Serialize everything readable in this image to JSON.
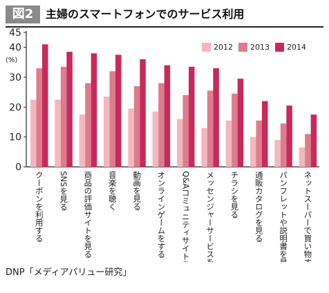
{
  "figure": {
    "badge": "図2",
    "title": "主婦のスマートフォンでのサービス利用",
    "source": "DNP「メディアパリュー研究」"
  },
  "chart_data": {
    "type": "bar",
    "ylabel": "(%)",
    "ylim": [
      0,
      45
    ],
    "yticks": [
      0,
      10,
      20,
      30,
      40,
      45
    ],
    "grid": false,
    "legend_position": "top-right",
    "categories": [
      "クーポンを利用する",
      "SNSを見る",
      "商品の評価サイトを見る",
      "音楽を聴く",
      "動画を見る",
      "オンラインゲームをする",
      "Q&Aコミュニティサイトを見る",
      "メッセンジャーサービスを見る",
      "チラシを見る",
      "通販カタログを見る",
      "パンフレットや説明書を見る",
      "ネットスーパーで買い物する"
    ],
    "series": [
      {
        "name": "2012",
        "color": "#f2b8bd",
        "values": [
          22.5,
          22.5,
          17.5,
          23.5,
          19.5,
          18.5,
          16,
          13,
          15.5,
          10,
          9,
          6.5
        ]
      },
      {
        "name": "2013",
        "color": "#dc7d8d",
        "values": [
          33,
          33.5,
          28,
          32,
          27,
          28,
          24,
          25.5,
          24.5,
          15.5,
          14.5,
          11
        ]
      },
      {
        "name": "2014",
        "color": "#c9295a",
        "values": [
          41,
          38.5,
          38,
          37.5,
          36,
          34,
          33.5,
          33,
          29.5,
          22,
          20.5,
          17.5
        ]
      }
    ]
  }
}
